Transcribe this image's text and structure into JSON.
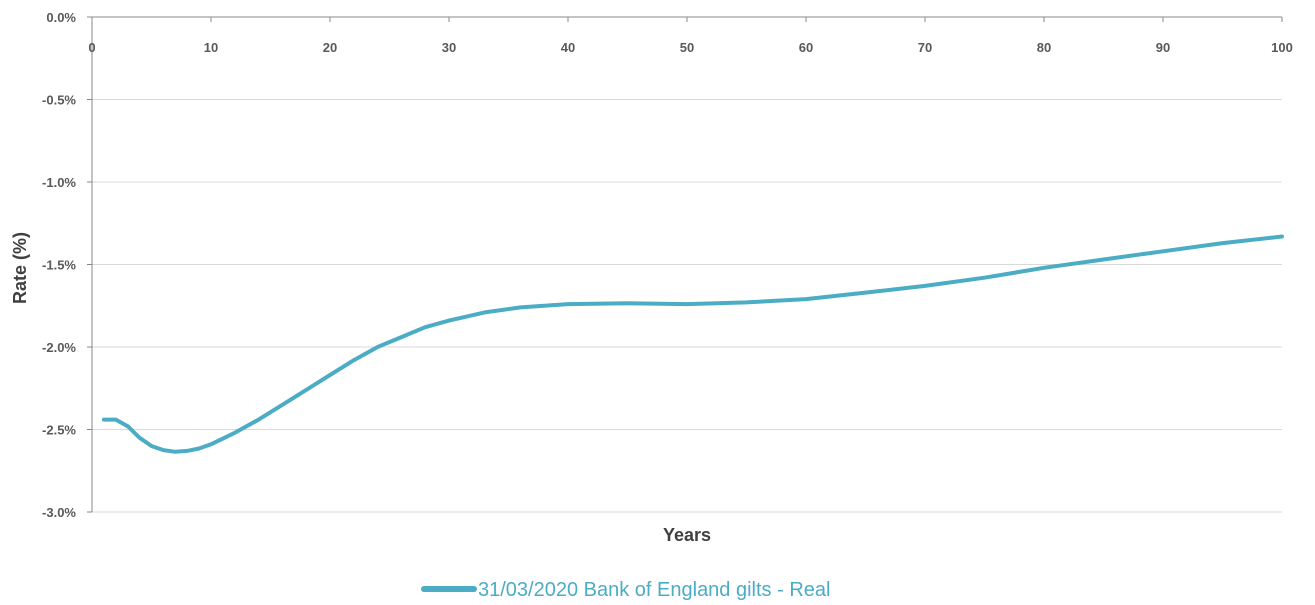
{
  "chart_data": {
    "type": "line",
    "title": "",
    "xlabel": "Years",
    "ylabel": "Rate (%)",
    "xlim": [
      0,
      100
    ],
    "ylim": [
      -3.0,
      0.0
    ],
    "x_ticks": [
      0,
      10,
      20,
      30,
      40,
      50,
      60,
      70,
      80,
      90,
      100
    ],
    "x_tick_labels": [
      "0",
      "10",
      "20",
      "30",
      "40",
      "50",
      "60",
      "70",
      "80",
      "90",
      "100"
    ],
    "y_ticks": [
      0.0,
      -0.5,
      -1.0,
      -1.5,
      -2.0,
      -2.5,
      -3.0
    ],
    "y_tick_labels": [
      "0.0%",
      "-0.5%",
      "-1.0%",
      "-1.5%",
      "-2.0%",
      "-2.5%",
      "-3.0%"
    ],
    "x_axis_position": "top",
    "grid": "horizontal",
    "legend_position": "bottom-center",
    "series": [
      {
        "name": "31/03/2020 Bank of England gilts - Real",
        "color": "#4BACC6",
        "x": [
          1,
          2,
          3,
          4,
          5,
          6,
          7,
          8,
          9,
          10,
          12,
          14,
          16,
          18,
          20,
          22,
          24,
          26,
          28,
          30,
          33,
          36,
          40,
          45,
          50,
          55,
          60,
          65,
          70,
          75,
          80,
          85,
          90,
          95,
          100
        ],
        "values": [
          -2.44,
          -2.44,
          -2.48,
          -2.55,
          -2.6,
          -2.625,
          -2.635,
          -2.63,
          -2.615,
          -2.59,
          -2.52,
          -2.44,
          -2.35,
          -2.26,
          -2.17,
          -2.08,
          -2.0,
          -1.94,
          -1.88,
          -1.84,
          -1.79,
          -1.76,
          -1.74,
          -1.735,
          -1.74,
          -1.73,
          -1.71,
          -1.67,
          -1.63,
          -1.58,
          -1.52,
          -1.47,
          -1.42,
          -1.37,
          -1.33
        ]
      }
    ]
  }
}
